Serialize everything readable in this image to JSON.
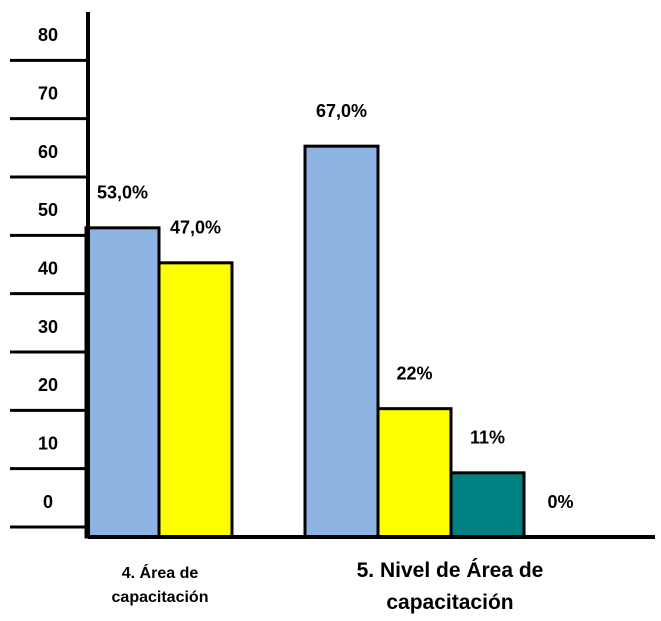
{
  "chart_data": {
    "type": "bar",
    "categories": [
      "4. Área de capacitación",
      "5. Nivel de Área de capacitación"
    ],
    "series": [
      {
        "color": "#8db3e2",
        "values": [
          53,
          67
        ],
        "value_labels": [
          "53,0%",
          "67,0%"
        ]
      },
      {
        "color": "#ffff00",
        "values": [
          47,
          22
        ],
        "value_labels": [
          "47,0%",
          "22%"
        ]
      },
      {
        "color": "#008080",
        "values": [
          null,
          11
        ],
        "value_labels": [
          null,
          "11%"
        ]
      },
      {
        "values": [
          null,
          0
        ],
        "value_labels": [
          null,
          "0%"
        ]
      }
    ],
    "ylim": [
      0,
      90
    ],
    "yticks": [
      0,
      10,
      20,
      30,
      40,
      50,
      60,
      70,
      80
    ]
  }
}
